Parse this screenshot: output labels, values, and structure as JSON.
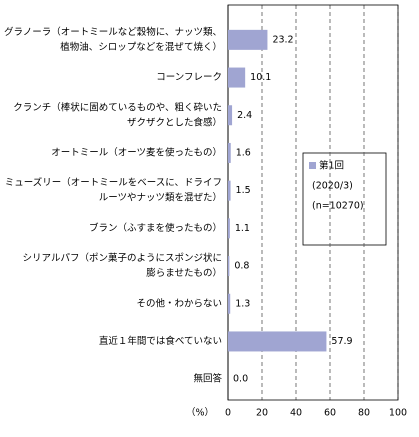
{
  "chart_data": {
    "type": "bar",
    "orientation": "horizontal",
    "categories": [
      [
        "グラノーラ（オートミールなど穀物に、ナッツ類、",
        "植物油、シロップなどを混ぜて焼く）"
      ],
      [
        "コーンフレーク"
      ],
      [
        "クランチ（棒状に固めているものや、粗く砕いた",
        "ザクザクとした食感）"
      ],
      [
        "オートミール（オーツ麦を使ったもの）"
      ],
      [
        "ミューズリー（オートミールをベースに、ドライフ",
        "ルーツやナッツ類を混ぜた）"
      ],
      [
        "ブラン（ふすまを使ったもの）"
      ],
      [
        "シリアルパフ（ポン菓子のようにスポンジ状に",
        "膨らませたもの）"
      ],
      [
        "その他・わからない"
      ],
      [
        "直近１年間では食べていない"
      ],
      [
        "無回答"
      ]
    ],
    "series": [
      {
        "name": "第1回",
        "color": "#a0a5d2",
        "values": [
          23.2,
          10.1,
          2.4,
          1.6,
          1.5,
          1.1,
          0.8,
          1.3,
          57.9,
          0
        ],
        "value_labels": [
          "23.2",
          "10.1",
          "2.4",
          "1.6",
          "1.5",
          "1.1",
          "0.8",
          "1.3",
          "57.9",
          "0.0"
        ]
      }
    ],
    "legend_note": [
      "(2020/3)",
      "(n=10270)"
    ],
    "xlabel": "（%）",
    "xlim": [
      0,
      100
    ],
    "xticks": [
      0,
      20,
      40,
      60,
      80,
      100
    ],
    "grid": true
  }
}
